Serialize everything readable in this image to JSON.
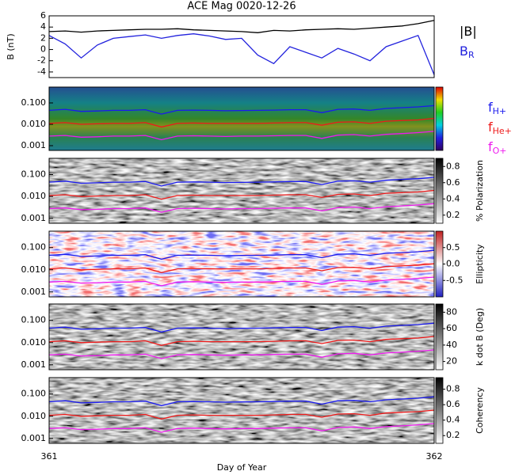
{
  "chart_data": [
    {
      "type": "line",
      "title": "ACE Mag 0020-12-26",
      "ylabel": "B (nT)",
      "xlabel": "Day of Year",
      "xlim": [
        361,
        362
      ],
      "xticks": [
        361,
        362
      ],
      "ylim": [
        -5,
        6
      ],
      "yticks": [
        -4,
        -2,
        0,
        2,
        4,
        6
      ],
      "x": [
        361.0,
        361.0417,
        361.0833,
        361.125,
        361.1667,
        361.2083,
        361.25,
        361.2917,
        361.3333,
        361.375,
        361.4167,
        361.4583,
        361.5,
        361.5417,
        361.5833,
        361.625,
        361.6667,
        361.7083,
        361.75,
        361.7917,
        361.8333,
        361.875,
        361.9167,
        361.9583,
        362.0
      ],
      "series": [
        {
          "name": "|B|",
          "color": "#000000",
          "values": [
            3.2,
            3.3,
            3.1,
            3.3,
            3.4,
            3.5,
            3.6,
            3.6,
            3.7,
            3.5,
            3.4,
            3.3,
            3.2,
            3.0,
            3.4,
            3.3,
            3.5,
            3.6,
            3.7,
            3.6,
            3.8,
            4.0,
            4.2,
            4.6,
            5.2
          ]
        },
        {
          "name": "B",
          "name_sub": "R",
          "color": "#2222dd",
          "values": [
            2.5,
            1.0,
            -1.5,
            0.8,
            2.0,
            2.3,
            2.6,
            2.0,
            2.5,
            2.8,
            2.4,
            1.8,
            2.0,
            -1.0,
            -2.5,
            0.5,
            -0.5,
            -1.5,
            0.2,
            -0.8,
            -2.0,
            0.5,
            1.5,
            2.5,
            -4.5
          ]
        }
      ]
    },
    {
      "type": "spectrogram-stack",
      "log_y": true,
      "ylim": [
        0.0006,
        0.55
      ],
      "yticks": [
        {
          "value": 0.1,
          "label": "0.100"
        },
        {
          "value": 0.01,
          "label": "0.010"
        },
        0.001
      ],
      "series": [
        {
          "name": "f",
          "name_sub": "H+",
          "color": "#1a1aee",
          "values": [
            0.045,
            0.05,
            0.04,
            0.042,
            0.045,
            0.045,
            0.048,
            0.03,
            0.045,
            0.046,
            0.045,
            0.043,
            0.044,
            0.045,
            0.046,
            0.048,
            0.048,
            0.035,
            0.05,
            0.052,
            0.045,
            0.055,
            0.06,
            0.065,
            0.075
          ]
        },
        {
          "name": "f",
          "name_sub": "He+",
          "color": "#ee1a1a",
          "values": [
            0.011,
            0.012,
            0.01,
            0.0105,
            0.011,
            0.011,
            0.012,
            0.0075,
            0.011,
            0.0115,
            0.011,
            0.011,
            0.011,
            0.011,
            0.0115,
            0.012,
            0.012,
            0.009,
            0.0125,
            0.013,
            0.011,
            0.014,
            0.015,
            0.016,
            0.019
          ]
        },
        {
          "name": "f",
          "name_sub": "O+",
          "color": "#ee1aee",
          "values": [
            0.0028,
            0.003,
            0.0025,
            0.0026,
            0.0028,
            0.0028,
            0.003,
            0.0019,
            0.0028,
            0.0029,
            0.0028,
            0.0027,
            0.0028,
            0.0028,
            0.0029,
            0.003,
            0.003,
            0.0022,
            0.0031,
            0.0033,
            0.0028,
            0.0034,
            0.0037,
            0.0041,
            0.0047
          ]
        }
      ],
      "panels": [
        {
          "colorbar": "rainbow"
        },
        {
          "colorbar": "gray",
          "clabel": "% Polarization",
          "clim": [
            0.1,
            0.9
          ],
          "cticks": [
            0.2,
            0.4,
            0.6,
            0.8
          ]
        },
        {
          "colorbar": "bwr",
          "clabel": "Ellipticity",
          "clim": [
            -1,
            1
          ],
          "cticks": [
            -0.5,
            {
              "value": 0,
              "label": "0.0"
            },
            0.5
          ]
        },
        {
          "colorbar": "gray",
          "clabel": "k dot B (Deg)",
          "clim": [
            10,
            90
          ],
          "cticks": [
            20,
            40,
            60,
            80
          ]
        },
        {
          "colorbar": "gray",
          "clabel": "Coherency",
          "clim": [
            0.1,
            0.95
          ],
          "cticks": [
            0.2,
            0.4,
            0.6,
            0.8
          ]
        }
      ]
    }
  ]
}
